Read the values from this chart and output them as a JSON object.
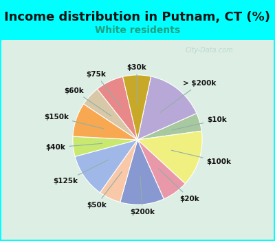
{
  "title": "Income distribution in Putnam, CT (%)",
  "subtitle": "White residents",
  "background_color": "#00FFFF",
  "chart_bg_color": "#e0f0e8",
  "title_fontsize": 13,
  "subtitle_fontsize": 10,
  "title_color": "#111111",
  "subtitle_color": "#20a080",
  "watermark": "City-Data.com",
  "labels": [
    "> $200k",
    "$10k",
    "$100k",
    "$20k",
    "$200k",
    "$50k",
    "$125k",
    "$40k",
    "$150k",
    "$60k",
    "$75k",
    "$30k"
  ],
  "values": [
    15.0,
    4.5,
    14.0,
    6.5,
    11.0,
    5.5,
    11.0,
    5.0,
    8.5,
    5.0,
    7.0,
    7.0
  ],
  "colors": [
    "#b8a8d8",
    "#a8c8a0",
    "#f0f080",
    "#e898a8",
    "#8898d0",
    "#f8c8a8",
    "#a0b8e8",
    "#c8e870",
    "#f8a850",
    "#d8c8a8",
    "#e88888",
    "#c8a828"
  ],
  "startangle": 78,
  "label_fontsize": 7.5,
  "label_color": "#111111"
}
